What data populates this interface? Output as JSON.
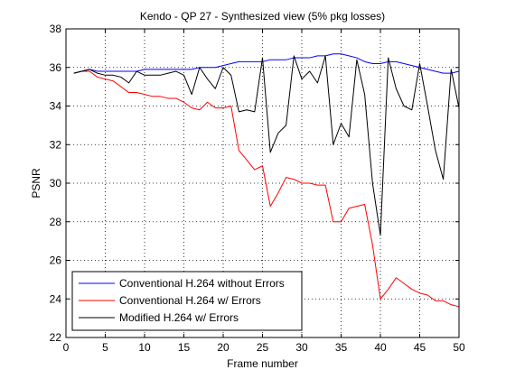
{
  "chart_data": {
    "type": "line",
    "title": "Kendo - QP 27 - Synthesized view (5% pkg losses)",
    "xlabel": "Frame number",
    "ylabel": "PSNR",
    "xlim": [
      0,
      50
    ],
    "ylim": [
      22,
      38
    ],
    "xticks": [
      0,
      5,
      10,
      15,
      20,
      25,
      30,
      35,
      40,
      45,
      50
    ],
    "yticks": [
      22,
      24,
      26,
      28,
      30,
      32,
      34,
      36,
      38
    ],
    "grid": true,
    "grid_style": "dotted",
    "legend_position": "lower-left",
    "series": [
      {
        "name": "Conventional H.264 without Errors",
        "color": "#0000ff",
        "x": [
          1,
          2,
          3,
          4,
          5,
          6,
          7,
          8,
          9,
          10,
          11,
          12,
          13,
          14,
          15,
          16,
          17,
          18,
          19,
          20,
          21,
          22,
          23,
          24,
          25,
          26,
          27,
          28,
          29,
          30,
          31,
          32,
          33,
          34,
          35,
          36,
          37,
          38,
          39,
          40,
          41,
          42,
          43,
          44,
          45,
          46,
          47,
          48,
          49,
          50
        ],
        "y": [
          35.7,
          35.8,
          35.9,
          35.8,
          35.8,
          35.8,
          35.8,
          35.8,
          35.8,
          35.9,
          35.9,
          35.9,
          35.9,
          35.9,
          35.9,
          35.9,
          36.0,
          36.0,
          36.0,
          36.1,
          36.2,
          36.3,
          36.3,
          36.3,
          36.3,
          36.4,
          36.4,
          36.4,
          36.5,
          36.5,
          36.5,
          36.6,
          36.6,
          36.7,
          36.7,
          36.6,
          36.5,
          36.3,
          36.2,
          36.2,
          36.3,
          36.3,
          36.2,
          36.1,
          36.0,
          35.9,
          35.8,
          35.7,
          35.7,
          35.8
        ]
      },
      {
        "name": "Conventional H.264 w/ Errors",
        "color": "#ff0000",
        "x": [
          1,
          2,
          3,
          4,
          5,
          6,
          7,
          8,
          9,
          10,
          11,
          12,
          13,
          14,
          15,
          16,
          17,
          18,
          19,
          20,
          21,
          22,
          23,
          24,
          25,
          26,
          27,
          28,
          29,
          30,
          31,
          32,
          33,
          34,
          35,
          36,
          37,
          38,
          39,
          40,
          41,
          42,
          43,
          44,
          45,
          46,
          47,
          48,
          49,
          50
        ],
        "y": [
          35.7,
          35.8,
          35.8,
          35.5,
          35.4,
          35.3,
          35.0,
          34.7,
          34.7,
          34.6,
          34.5,
          34.5,
          34.4,
          34.4,
          34.2,
          33.9,
          33.8,
          34.2,
          33.9,
          33.9,
          34.0,
          31.7,
          31.2,
          30.7,
          30.9,
          28.8,
          29.5,
          30.3,
          30.2,
          30.0,
          30.0,
          29.9,
          29.9,
          28.0,
          28.0,
          28.7,
          28.8,
          28.9,
          26.8,
          24.0,
          24.5,
          25.1,
          24.8,
          24.5,
          24.3,
          24.2,
          23.9,
          23.9,
          23.7,
          23.6
        ]
      },
      {
        "name": "Modified H.264 w/ Errors",
        "color": "#000000",
        "x": [
          1,
          2,
          3,
          4,
          5,
          6,
          7,
          8,
          9,
          10,
          11,
          12,
          13,
          14,
          15,
          16,
          17,
          18,
          19,
          20,
          21,
          22,
          23,
          24,
          25,
          26,
          27,
          28,
          29,
          30,
          31,
          32,
          33,
          34,
          35,
          36,
          37,
          38,
          39,
          40,
          41,
          42,
          43,
          44,
          45,
          46,
          47,
          48,
          49,
          50
        ],
        "y": [
          35.7,
          35.8,
          35.9,
          35.7,
          35.6,
          35.6,
          35.5,
          35.2,
          35.8,
          35.6,
          35.6,
          35.6,
          35.7,
          35.8,
          35.6,
          34.6,
          36.0,
          35.4,
          34.9,
          36.0,
          35.6,
          33.7,
          33.8,
          33.7,
          36.5,
          31.6,
          32.6,
          33.0,
          36.6,
          35.4,
          35.8,
          35.2,
          36.6,
          32.0,
          33.1,
          32.4,
          36.4,
          34.6,
          30.0,
          27.3,
          36.5,
          34.9,
          34.0,
          33.8,
          36.2,
          34.0,
          31.7,
          30.2,
          35.9,
          33.9
        ]
      }
    ]
  }
}
